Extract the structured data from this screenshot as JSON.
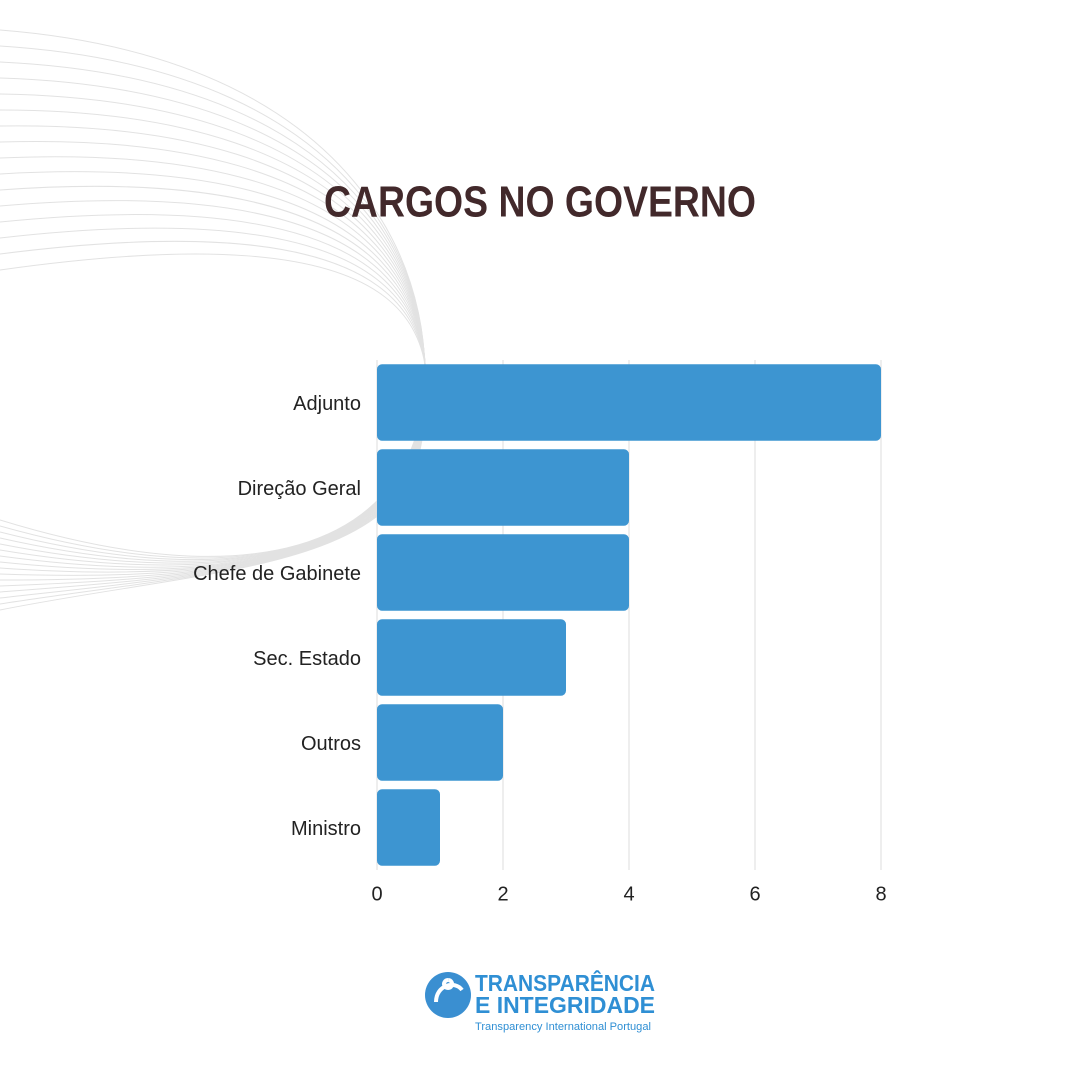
{
  "chart_data": {
    "type": "hbar",
    "title": "CARGOS NO GOVERNO",
    "categories": [
      "Adjunto",
      "Direção Geral",
      "Chefe de Gabinete",
      "Sec. Estado",
      "Outros",
      "Ministro"
    ],
    "values": [
      8,
      4,
      4,
      3,
      2,
      1
    ],
    "color": "#3d95d1",
    "xlim": [
      0,
      8
    ],
    "xticks": [
      0,
      2,
      4,
      6,
      8
    ],
    "grid": true
  },
  "logo": {
    "line1": "TRANSPARÊNCIA",
    "line2": "E INTEGRIDADE",
    "tagline": "Transparency International Portugal"
  }
}
